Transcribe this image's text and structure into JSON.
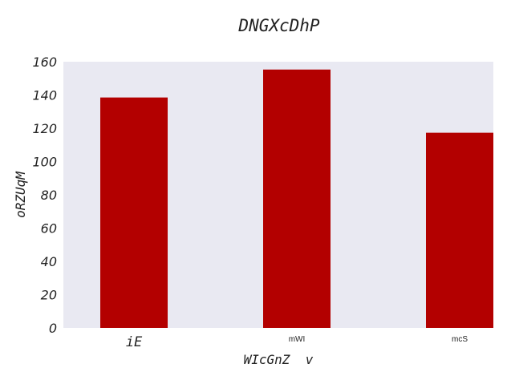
{
  "chart_data": {
    "type": "bar",
    "title": "DNGXcDhP",
    "xlabel": "WIcGnZ  v",
    "ylabel": "oRZUqM",
    "categories": [
      "iE",
      "mWI",
      "mcS"
    ],
    "values": [
      138.5,
      155.3,
      117.3
    ],
    "ylim": [
      0,
      160
    ],
    "yticks": [
      "0",
      "20",
      "40",
      "60",
      "80",
      "100",
      "120",
      "140",
      "160"
    ],
    "grid": false,
    "legend": "none",
    "colors": {
      "bar": "#b30000",
      "plot_background": "#e9e9f2"
    }
  }
}
